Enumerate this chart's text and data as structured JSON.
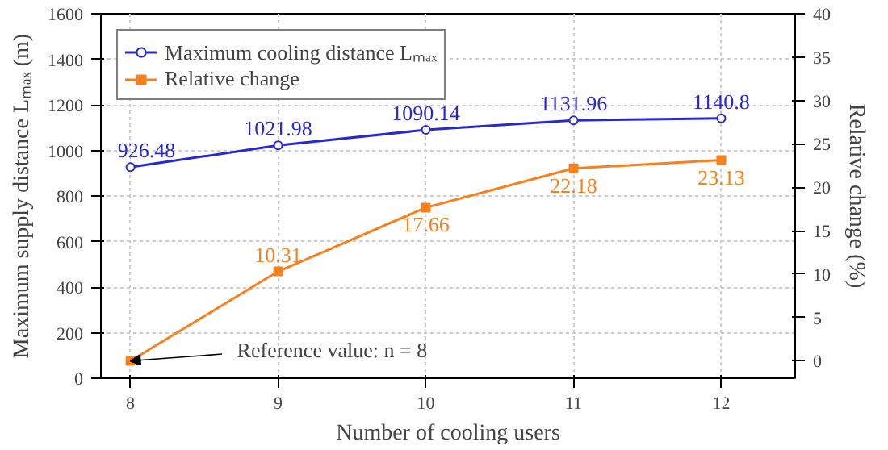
{
  "chart_data": {
    "type": "line",
    "xlabel": "Number of cooling users",
    "ylabel": "Maximum supply distance Lₘₐₓ (m)",
    "y2label": "Relative change (%)",
    "x": [
      8,
      9,
      10,
      11,
      12
    ],
    "series": [
      {
        "name": "Maximum cooling distance Lₘₐₓ",
        "color": "#2828d0",
        "marker": "circle",
        "values": [
          926.48,
          1021.98,
          1090.14,
          1131.96,
          1140.8
        ],
        "value_labels": [
          "926.48",
          "1021.98",
          "1090.14",
          "1131.96",
          "1140.8"
        ]
      },
      {
        "name": "Relative change",
        "color": "#f5821f",
        "marker": "square",
        "axis": "y2",
        "values": [
          0,
          10.31,
          17.66,
          22.18,
          23.13
        ],
        "value_labels": [
          null,
          "10.31",
          "17.66",
          "22.18",
          "23.13"
        ]
      }
    ],
    "xlim": [
      7.8,
      12.5
    ],
    "xticks": [
      8,
      9,
      10,
      11,
      12
    ],
    "ylim": [
      0,
      1600
    ],
    "yticks": [
      0,
      200,
      400,
      600,
      800,
      1000,
      1200,
      1400,
      1600
    ],
    "y2lim": [
      -2,
      40
    ],
    "y2ticks": [
      0,
      5,
      10,
      15,
      20,
      25,
      30,
      35,
      40
    ],
    "annotations": [
      {
        "text": "Reference value: n = 8",
        "x": 8,
        "y": 76
      }
    ],
    "grid": true,
    "legend": "top left",
    "line_style": "solid"
  }
}
